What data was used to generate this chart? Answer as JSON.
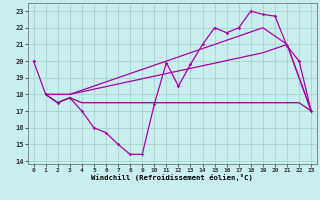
{
  "xlabel": "Windchill (Refroidissement éolien,°C)",
  "background_color": "#c8eef0",
  "grid_color": "#a0d0c0",
  "line_color1": "#aa00aa",
  "line_color2": "#880088",
  "xlim": [
    -0.5,
    23.5
  ],
  "ylim": [
    13.8,
    23.5
  ],
  "yticks": [
    14,
    15,
    16,
    17,
    18,
    19,
    20,
    21,
    22,
    23
  ],
  "xticks": [
    0,
    1,
    2,
    3,
    4,
    5,
    6,
    7,
    8,
    9,
    10,
    11,
    12,
    13,
    14,
    15,
    16,
    17,
    18,
    19,
    20,
    21,
    22,
    23
  ],
  "s1x": [
    0,
    1,
    2,
    3,
    4,
    5,
    6,
    7,
    8,
    9,
    10,
    11,
    12,
    13,
    14,
    15,
    16,
    17,
    18,
    19,
    20,
    21,
    22,
    23
  ],
  "s1y": [
    20.0,
    18.0,
    17.5,
    17.8,
    17.0,
    16.0,
    15.7,
    15.0,
    14.4,
    14.4,
    17.4,
    19.9,
    18.5,
    19.8,
    21.0,
    22.0,
    21.7,
    22.0,
    23.0,
    22.8,
    22.7,
    20.9,
    20.0,
    17.0
  ],
  "s2x": [
    1,
    3,
    19,
    21,
    23
  ],
  "s2y": [
    18.0,
    18.0,
    22.0,
    21.0,
    17.0
  ],
  "s3x": [
    1,
    3,
    19,
    21,
    23
  ],
  "s3y": [
    18.0,
    18.0,
    20.5,
    21.0,
    17.0
  ],
  "s4x": [
    1,
    2,
    3,
    4,
    5,
    6,
    7,
    8,
    9,
    10,
    11,
    12,
    13,
    14,
    15,
    16,
    17,
    18,
    19,
    20,
    21,
    22,
    23
  ],
  "s4y": [
    18.0,
    17.5,
    17.8,
    17.5,
    17.5,
    17.5,
    17.5,
    17.5,
    17.5,
    17.5,
    17.5,
    17.5,
    17.5,
    17.5,
    17.5,
    17.5,
    17.5,
    17.5,
    17.5,
    17.5,
    17.5,
    17.5,
    17.0
  ]
}
